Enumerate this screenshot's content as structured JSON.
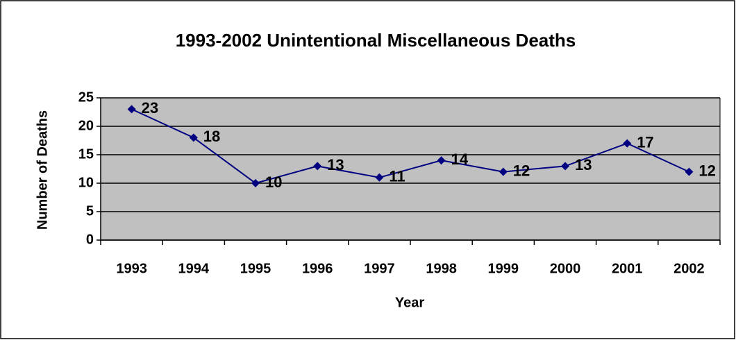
{
  "chart_data": {
    "type": "line",
    "title": "1993-2002 Unintentional Miscellaneous Deaths",
    "x_label": "Year",
    "y_label": "Number of Deaths",
    "categories": [
      "1993",
      "1994",
      "1995",
      "1996",
      "1997",
      "1998",
      "1999",
      "2000",
      "2001",
      "2002"
    ],
    "series": [
      {
        "name": "Deaths",
        "color": "#000080",
        "values": [
          23,
          18,
          10,
          13,
          11,
          14,
          12,
          13,
          17,
          12
        ]
      }
    ],
    "ylim": [
      0,
      25
    ],
    "yticks": [
      0,
      5,
      10,
      15,
      20,
      25
    ],
    "grid": true,
    "plot_background": "#c0c0c0"
  }
}
